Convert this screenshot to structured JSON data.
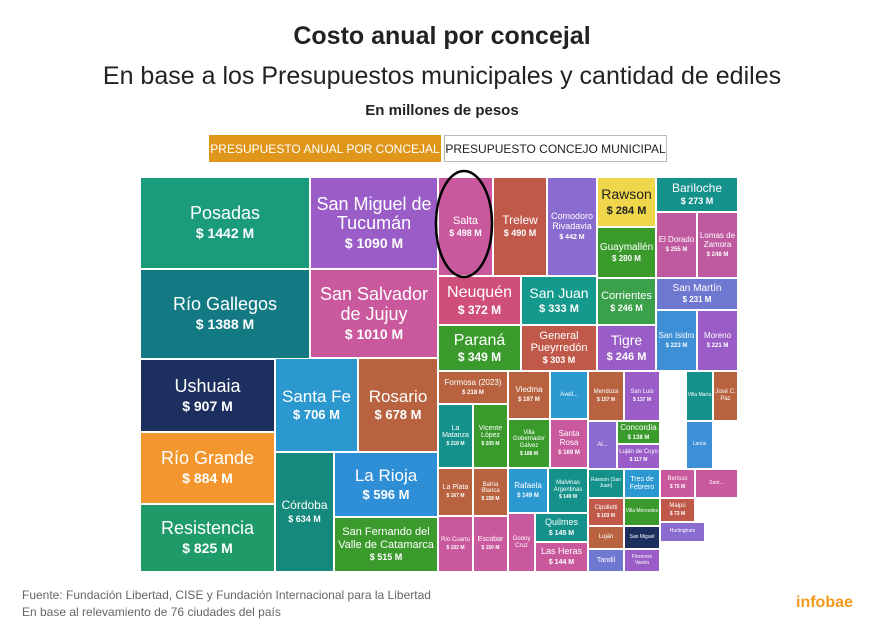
{
  "tabs": [
    "PRESUPUESTO ANUAL POR CONCEJAL",
    "PRESUPUESTO CONCEJO MUNICIPAL"
  ],
  "footer": {
    "source": "Fuente: Fundación Libertad, CISE y Fundación Internacional para la Libertad",
    "note": "En base al relevamiento de 76 ciudades del país",
    "brand": "infobae"
  },
  "chart_data": {
    "type": "treemap",
    "title": "Costo anual por concejal",
    "subtitle": "En base a los Presupuestos municipales y cantidad de ediles",
    "unit_note": "En millones de pesos",
    "categories": [
      "Posadas",
      "Río Gallegos",
      "Ushuaia",
      "Río Grande",
      "Resistencia",
      "San Miguel de Tucumán",
      "San Salvador de Jujuy",
      "Santa Fe",
      "Rosario",
      "Córdoba",
      "La Rioja",
      "San Fernando del Valle de Catamarca",
      "Salta",
      "Trelew",
      "Comodoro Rivadavia",
      "Rawson",
      "Guaymallén",
      "Bariloche",
      "El Dorado",
      "Lomas de Zamora",
      "Neuquén",
      "San Juan",
      "Corrientes",
      "San Martín",
      "Paraná",
      "General Pueyrredón",
      "Tigre",
      "San Isidro",
      "Moreno",
      "Formosa (2023)",
      "La Matanza",
      "Vicente López",
      "Viedma",
      "Avell...",
      "Villa Gobernador Gálvez",
      "Santa Rosa",
      "La Plata",
      "Bahía Blanca",
      "Rafaela",
      "Malvinas Argentinas",
      "Río Cuarto",
      "Escobar",
      "Godoy Cruz",
      "Quilmes",
      "Las Heras",
      "Mendoza",
      "San Luis",
      "Concordia",
      "Luján de Cuyo",
      "Al...",
      "Rawson (San Juan)",
      "Cipolletti",
      "Luján",
      "Tandil",
      "Tres de Febrero",
      "Villa Mercedes",
      "San Miguel",
      "Florencio Varela",
      "Berisso",
      "Maipú",
      "Hurlingham",
      "Villa María",
      "José C. Paz",
      "Lanús",
      "Sant..."
    ],
    "values": [
      1442,
      1388,
      907,
      884,
      825,
      1090,
      1010,
      706,
      678,
      634,
      596,
      515,
      498,
      490,
      442,
      284,
      280,
      273,
      255,
      248,
      372,
      333,
      246,
      231,
      349,
      303,
      246,
      223,
      221,
      218,
      218,
      205,
      197,
      null,
      188,
      169,
      167,
      158,
      149,
      149,
      152,
      150,
      null,
      145,
      144,
      157,
      137,
      138,
      117,
      null,
      null,
      103,
      null,
      null,
      null,
      null,
      null,
      null,
      75,
      73,
      null,
      null,
      null,
      null,
      null
    ],
    "value_labels": [
      "$ 1442 M",
      "$ 1388 M",
      "$ 907 M",
      "$ 884 M",
      "$ 825 M",
      "$ 1090 M",
      "$ 1010 M",
      "$ 706 M",
      "$ 678 M",
      "$ 634 M",
      "$ 596 M",
      "$ 515 M",
      "$ 498 M",
      "$ 490 M",
      "$ 442 M",
      "$ 284 M",
      "$ 280 M",
      "$ 273 M",
      "$ 255 M",
      "$ 248 M",
      "$ 372 M",
      "$ 333 M",
      "$ 246 M",
      "$ 231 M",
      "$ 349 M",
      "$ 303 M",
      "$ 246 M",
      "$ 223 M",
      "$ 221 M",
      "$ 218 M",
      "$ 218 M",
      "$ 205 M",
      "$ 197 M",
      null,
      "$ 188 M",
      "$ 169 M",
      "$ 167 M",
      "$ 158 M",
      "$ 149 M",
      "$ 149 M",
      "$ 152 M",
      "$ 150 M",
      null,
      "$ 145 M",
      "$ 144 M",
      "$ 157 M",
      "$ 137 M",
      "$ 138 M",
      "$ 117 M",
      null,
      null,
      "$ 103 M",
      null,
      null,
      null,
      null,
      null,
      null,
      "$ 75 M",
      "$ 73 M",
      null,
      null,
      null,
      null,
      null
    ],
    "colors": [
      "#1a9c7c",
      "#137a84",
      "#1c2f5e",
      "#f2962d",
      "#1f9b6a",
      "#9a5cc6",
      "#c9589c",
      "#2b98d0",
      "#b8623f",
      "#15897c",
      "#2f8fd6",
      "#3a9b2c",
      "#c9589c",
      "#c0594a",
      "#8a6bd0",
      "#f0d64a",
      "#3a9b2c",
      "#14918a",
      "#c05aa0",
      "#c05aa0",
      "#d04f7a",
      "#149a8c",
      "#3aa04a",
      "#6f78d0",
      "#3a9b2c",
      "#c0594a",
      "#9a5cc6",
      "#3d8fd6",
      "#9a5cc6",
      "#b8623f",
      "#14918a",
      "#3a9b2c",
      "#b8623f",
      "#2b98d0",
      "#3a9b2c",
      "#c9589c",
      "#b8623f",
      "#b8623f",
      "#2b98d0",
      "#14918a",
      "#c9589c",
      "#c9589c",
      "#c9589c",
      "#14918a",
      "#c9589c",
      "#b8623f",
      "#9a5cc6",
      "#3a9b2c",
      "#9a5cc6",
      "#8a6bd0",
      "#14918a",
      "#c0594a",
      "#b8623f",
      "#6f78d0",
      "#2b98d0",
      "#3a9b2c",
      "#1c2f5e",
      "#9a5cc6",
      "#c9589c",
      "#c0594a",
      "#8a6bd0",
      "#14918a",
      "#b8623f",
      "#3d8fd6",
      "#c9589c"
    ]
  }
}
